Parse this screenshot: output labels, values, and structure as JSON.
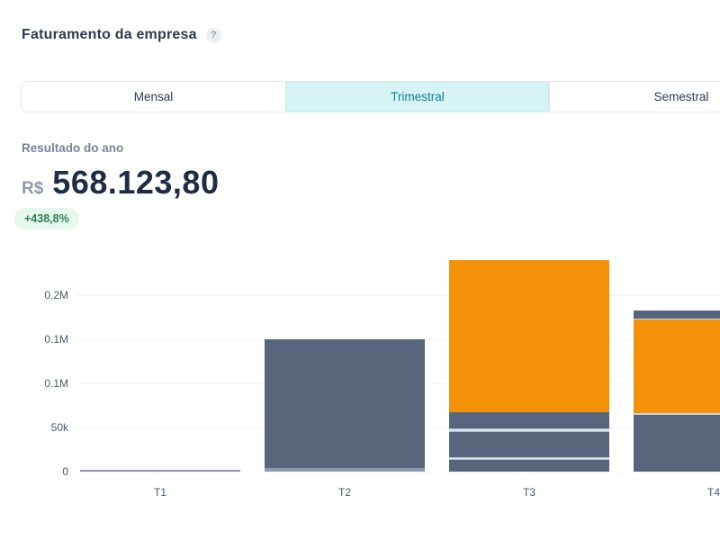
{
  "header": {
    "title": "Faturamento da empresa",
    "help_icon": "?"
  },
  "tabs": [
    {
      "label": "Mensal",
      "active": false
    },
    {
      "label": "Trimestral",
      "active": true
    },
    {
      "label": "Semestral",
      "active": false
    }
  ],
  "summary": {
    "label": "Resultado do ano",
    "currency": "R$",
    "value": "568.123,80",
    "change_badge": "+438,8%"
  },
  "colors": {
    "title_text": "#2D3A4E",
    "active_tab_bg": "#D6F4F5",
    "active_tab_text": "#0F808C",
    "badge_bg": "#E5F8ED",
    "badge_text": "#2F7E52",
    "slate": "#56657B",
    "orange": "#F39109",
    "muted": "#8A99AC",
    "divider": "#DDEAF3",
    "gridline": "#F0F3F6"
  },
  "chart_data": {
    "type": "bar",
    "subtype": "stacked",
    "currency": "BRL",
    "categories": [
      "T1",
      "T2",
      "T3",
      "T4"
    ],
    "totals": [
      2500,
      150000,
      240000,
      183000
    ],
    "ylim": [
      0,
      210000
    ],
    "grid": true,
    "legend": false,
    "y_ticks": [
      {
        "value": 0,
        "label": "0"
      },
      {
        "value": 50000,
        "label": "50k"
      },
      {
        "value": 100000,
        "label": "0.1M"
      },
      {
        "value": 150000,
        "label": "0.1M"
      },
      {
        "value": 200000,
        "label": "0.2M"
      }
    ],
    "bars": [
      {
        "category": "T1",
        "segments": [
          {
            "color": "muted",
            "value": 2500
          }
        ]
      },
      {
        "category": "T2",
        "segments": [
          {
            "color": "muted",
            "value": 4000
          },
          {
            "color": "slate",
            "value": 146000
          }
        ]
      },
      {
        "category": "T3",
        "segments": [
          {
            "color": "slate",
            "value": 13000
          },
          {
            "color": "divider",
            "value": 3000
          },
          {
            "color": "slate",
            "value": 29000
          },
          {
            "color": "divider",
            "value": 4000
          },
          {
            "color": "slate",
            "value": 18000
          },
          {
            "color": "orange",
            "value": 173000
          }
        ]
      },
      {
        "category": "T4",
        "segments": [
          {
            "color": "slate",
            "value": 64000
          },
          {
            "color": "divider",
            "value": 2000
          },
          {
            "color": "orange",
            "value": 106000
          },
          {
            "color": "divider",
            "value": 1000
          },
          {
            "color": "slate",
            "value": 10000
          }
        ]
      }
    ]
  }
}
